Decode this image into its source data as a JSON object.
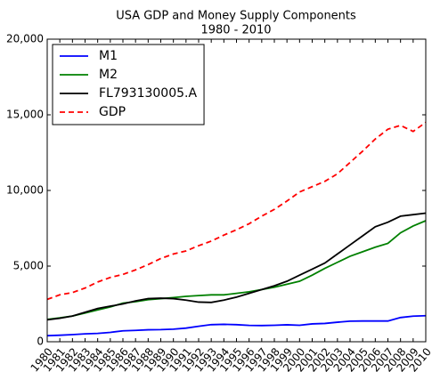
{
  "chart_data": {
    "type": "line",
    "title": "USA GDP and Money Supply Components",
    "subtitle": "1980 - 2010",
    "x": [
      1980,
      1981,
      1982,
      1983,
      1984,
      1985,
      1986,
      1987,
      1988,
      1989,
      1990,
      1991,
      1992,
      1993,
      1994,
      1995,
      1996,
      1997,
      1998,
      1999,
      2000,
      2001,
      2002,
      2003,
      2004,
      2005,
      2006,
      2007,
      2008,
      2009,
      2010
    ],
    "xlim": [
      1980,
      2010
    ],
    "xticks": [
      1980,
      1981,
      1982,
      1983,
      1984,
      1985,
      1986,
      1987,
      1988,
      1989,
      1990,
      1991,
      1992,
      1993,
      1994,
      1995,
      1996,
      1997,
      1998,
      1999,
      2000,
      2001,
      2002,
      2003,
      2004,
      2005,
      2006,
      2007,
      2008,
      2009,
      2010
    ],
    "ylim": [
      0,
      20000
    ],
    "yticks": [
      0,
      {
        "value": 5000,
        "label": "5,000"
      },
      {
        "value": 10000,
        "label": "10,000"
      },
      {
        "value": 15000,
        "label": "15,000"
      },
      {
        "value": 20000,
        "label": "20,000"
      }
    ],
    "legend": "upper left",
    "series": [
      {
        "name": "M1",
        "color": "#0000ff",
        "linestyle": "solid",
        "values": [
          400,
          430,
          470,
          520,
          550,
          620,
          720,
          750,
          790,
          800,
          830,
          900,
          1020,
          1130,
          1150,
          1130,
          1080,
          1070,
          1090,
          1120,
          1090,
          1180,
          1210,
          1290,
          1360,
          1370,
          1370,
          1370,
          1600,
          1690,
          1720
        ]
      },
      {
        "name": "M2",
        "color": "#008000",
        "linestyle": "solid",
        "values": [
          1480,
          1580,
          1700,
          1900,
          2100,
          2300,
          2550,
          2650,
          2780,
          2850,
          2920,
          3000,
          3050,
          3100,
          3100,
          3200,
          3300,
          3450,
          3600,
          3800,
          4000,
          4400,
          4850,
          5250,
          5650,
          5950,
          6250,
          6500,
          7200,
          7650,
          8000
        ]
      },
      {
        "name": "FL793130005.A",
        "color": "#000000",
        "linestyle": "solid",
        "values": [
          1450,
          1550,
          1700,
          1950,
          2200,
          2350,
          2500,
          2700,
          2850,
          2880,
          2850,
          2750,
          2620,
          2600,
          2750,
          2950,
          3200,
          3450,
          3700,
          4000,
          4400,
          4800,
          5200,
          5800,
          6400,
          7000,
          7600,
          7900,
          8300,
          8400,
          8500
        ]
      },
      {
        "name": "GDP",
        "color": "#ff0000",
        "linestyle": "dashed",
        "values": [
          2800,
          3100,
          3250,
          3550,
          3950,
          4250,
          4450,
          4750,
          5100,
          5500,
          5800,
          6000,
          6350,
          6650,
          7050,
          7400,
          7800,
          8300,
          8750,
          9300,
          9900,
          10250,
          10600,
          11100,
          11850,
          12600,
          13400,
          14050,
          14300,
          13900,
          14500
        ]
      }
    ]
  }
}
